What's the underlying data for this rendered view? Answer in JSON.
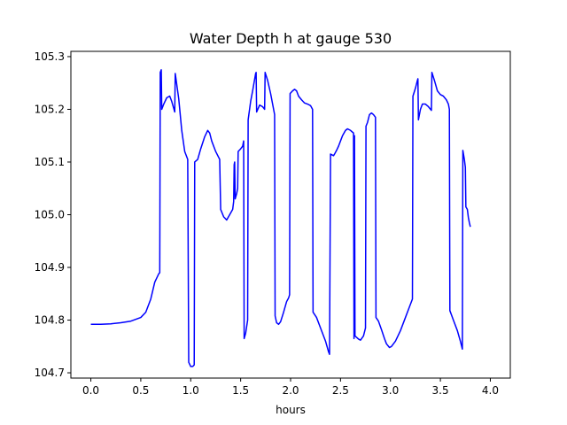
{
  "chart_data": {
    "type": "line",
    "title": "Water Depth h at gauge 530",
    "xlabel": "hours",
    "ylabel": "",
    "xlim": [
      -0.2,
      4.2
    ],
    "ylim": [
      104.69,
      105.31
    ],
    "xticks": [
      0.0,
      0.5,
      1.0,
      1.5,
      2.0,
      2.5,
      3.0,
      3.5,
      4.0
    ],
    "xtick_labels": [
      "0.0",
      "0.5",
      "1.0",
      "1.5",
      "2.0",
      "2.5",
      "3.0",
      "3.5",
      "4.0"
    ],
    "yticks": [
      104.7,
      104.8,
      104.9,
      105.0,
      105.1,
      105.2,
      105.3
    ],
    "ytick_labels": [
      "104.7",
      "104.8",
      "104.9",
      "105.0",
      "105.1",
      "105.2",
      "105.3"
    ],
    "grid": false,
    "series": [
      {
        "color": "#0000ff",
        "points": [
          [
            0.0,
            104.792
          ],
          [
            0.1,
            104.792
          ],
          [
            0.2,
            104.793
          ],
          [
            0.3,
            104.795
          ],
          [
            0.4,
            104.798
          ],
          [
            0.5,
            104.805
          ],
          [
            0.55,
            104.815
          ],
          [
            0.6,
            104.84
          ],
          [
            0.64,
            104.872
          ],
          [
            0.68,
            104.888
          ],
          [
            0.69,
            104.89
          ],
          [
            0.695,
            105.27
          ],
          [
            0.705,
            105.275
          ],
          [
            0.71,
            105.2
          ],
          [
            0.73,
            105.21
          ],
          [
            0.76,
            105.222
          ],
          [
            0.79,
            105.225
          ],
          [
            0.81,
            105.215
          ],
          [
            0.84,
            105.195
          ],
          [
            0.845,
            105.268
          ],
          [
            0.88,
            105.22
          ],
          [
            0.91,
            105.16
          ],
          [
            0.94,
            105.12
          ],
          [
            0.97,
            105.105
          ],
          [
            0.98,
            104.72
          ],
          [
            1.0,
            104.712
          ],
          [
            1.02,
            104.712
          ],
          [
            1.035,
            104.715
          ],
          [
            1.04,
            105.1
          ],
          [
            1.07,
            105.105
          ],
          [
            1.1,
            105.125
          ],
          [
            1.14,
            105.148
          ],
          [
            1.17,
            105.16
          ],
          [
            1.19,
            105.155
          ],
          [
            1.21,
            105.14
          ],
          [
            1.25,
            105.12
          ],
          [
            1.29,
            105.105
          ],
          [
            1.3,
            105.01
          ],
          [
            1.33,
            104.996
          ],
          [
            1.36,
            104.99
          ],
          [
            1.39,
            105.0
          ],
          [
            1.42,
            105.01
          ],
          [
            1.43,
            105.025
          ],
          [
            1.435,
            105.095
          ],
          [
            1.44,
            105.1
          ],
          [
            1.445,
            105.03
          ],
          [
            1.46,
            105.04
          ],
          [
            1.47,
            105.05
          ],
          [
            1.475,
            105.12
          ],
          [
            1.5,
            105.125
          ],
          [
            1.52,
            105.13
          ],
          [
            1.53,
            105.14
          ],
          [
            1.535,
            104.765
          ],
          [
            1.55,
            104.775
          ],
          [
            1.57,
            104.8
          ],
          [
            1.575,
            105.18
          ],
          [
            1.6,
            105.215
          ],
          [
            1.62,
            105.235
          ],
          [
            1.65,
            105.268
          ],
          [
            1.655,
            105.27
          ],
          [
            1.66,
            105.195
          ],
          [
            1.69,
            105.208
          ],
          [
            1.72,
            105.205
          ],
          [
            1.74,
            105.2
          ],
          [
            1.745,
            105.27
          ],
          [
            1.77,
            105.255
          ],
          [
            1.8,
            105.23
          ],
          [
            1.84,
            105.19
          ],
          [
            1.845,
            104.808
          ],
          [
            1.86,
            104.795
          ],
          [
            1.88,
            104.792
          ],
          [
            1.9,
            104.797
          ],
          [
            1.93,
            104.815
          ],
          [
            1.96,
            104.835
          ],
          [
            1.98,
            104.842
          ],
          [
            1.99,
            104.848
          ],
          [
            1.995,
            105.23
          ],
          [
            2.02,
            105.235
          ],
          [
            2.04,
            105.238
          ],
          [
            2.06,
            105.235
          ],
          [
            2.08,
            105.225
          ],
          [
            2.11,
            105.218
          ],
          [
            2.14,
            105.212
          ],
          [
            2.17,
            105.21
          ],
          [
            2.2,
            105.207
          ],
          [
            2.22,
            105.2
          ],
          [
            2.225,
            104.815
          ],
          [
            2.26,
            104.805
          ],
          [
            2.3,
            104.785
          ],
          [
            2.35,
            104.76
          ],
          [
            2.38,
            104.74
          ],
          [
            2.39,
            104.735
          ],
          [
            2.4,
            105.115
          ],
          [
            2.43,
            105.112
          ],
          [
            2.44,
            105.115
          ],
          [
            2.46,
            105.122
          ],
          [
            2.48,
            105.13
          ],
          [
            2.5,
            105.14
          ],
          [
            2.52,
            105.15
          ],
          [
            2.55,
            105.16
          ],
          [
            2.57,
            105.163
          ],
          [
            2.6,
            105.16
          ],
          [
            2.63,
            105.155
          ],
          [
            2.635,
            104.765
          ],
          [
            2.64,
            105.15
          ],
          [
            2.645,
            104.77
          ],
          [
            2.68,
            104.764
          ],
          [
            2.7,
            104.762
          ],
          [
            2.73,
            104.77
          ],
          [
            2.75,
            104.785
          ],
          [
            2.755,
            105.168
          ],
          [
            2.77,
            105.175
          ],
          [
            2.79,
            105.19
          ],
          [
            2.81,
            105.193
          ],
          [
            2.83,
            105.19
          ],
          [
            2.85,
            105.185
          ],
          [
            2.855,
            104.805
          ],
          [
            2.88,
            104.798
          ],
          [
            2.91,
            104.782
          ],
          [
            2.94,
            104.765
          ],
          [
            2.96,
            104.755
          ],
          [
            2.99,
            104.748
          ],
          [
            3.01,
            104.75
          ],
          [
            3.05,
            104.76
          ],
          [
            3.1,
            104.78
          ],
          [
            3.15,
            104.805
          ],
          [
            3.19,
            104.825
          ],
          [
            3.22,
            104.84
          ],
          [
            3.225,
            105.225
          ],
          [
            3.25,
            105.24
          ],
          [
            3.27,
            105.255
          ],
          [
            3.275,
            105.258
          ],
          [
            3.28,
            105.18
          ],
          [
            3.3,
            105.2
          ],
          [
            3.32,
            105.21
          ],
          [
            3.35,
            105.21
          ],
          [
            3.38,
            105.205
          ],
          [
            3.41,
            105.198
          ],
          [
            3.415,
            105.27
          ],
          [
            3.44,
            105.255
          ],
          [
            3.47,
            105.235
          ],
          [
            3.5,
            105.228
          ],
          [
            3.53,
            105.225
          ],
          [
            3.56,
            105.218
          ],
          [
            3.58,
            105.21
          ],
          [
            3.59,
            105.2
          ],
          [
            3.595,
            104.818
          ],
          [
            3.63,
            104.8
          ],
          [
            3.67,
            104.78
          ],
          [
            3.7,
            104.76
          ],
          [
            3.72,
            104.745
          ],
          [
            3.725,
            105.122
          ],
          [
            3.74,
            105.105
          ],
          [
            3.75,
            105.09
          ],
          [
            3.755,
            105.015
          ],
          [
            3.77,
            105.01
          ],
          [
            3.78,
            104.995
          ],
          [
            3.79,
            104.985
          ],
          [
            3.8,
            104.977
          ]
        ]
      }
    ]
  }
}
